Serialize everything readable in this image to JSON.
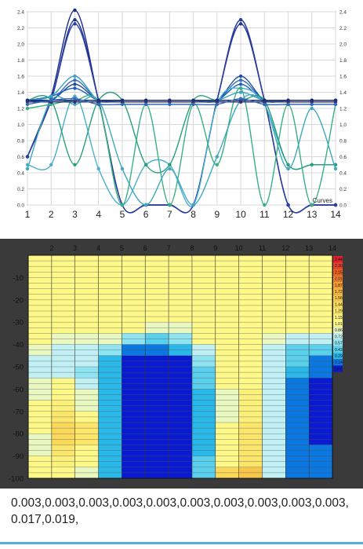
{
  "chart_data": [
    {
      "type": "line",
      "legend_label": "Curves",
      "legend_placement": "bottom-right",
      "grid": true,
      "x": [
        1,
        2,
        3,
        4,
        5,
        6,
        7,
        8,
        9,
        10,
        11,
        12,
        13,
        14
      ],
      "x_ticks": [
        "1",
        "2",
        "3",
        "4",
        "5",
        "6",
        "7",
        "8",
        "9",
        "10",
        "11",
        "12",
        "13",
        "14"
      ],
      "ylim": [
        0,
        2.4
      ],
      "y_ticks": [
        "0.0",
        "0.2",
        "0.4",
        "0.6",
        "0.8",
        "1.0",
        "1.2",
        "1.4",
        "1.6",
        "1.8",
        "2.0",
        "2.2",
        "2.4"
      ],
      "y_ticks_right": [
        "0.0",
        "0.2",
        "0.4",
        "0.6",
        "0.8",
        "1.0",
        "1.2",
        "1.4",
        "1.6",
        "1.8",
        "2.0",
        "2.2",
        "2.4"
      ],
      "series": [
        {
          "color": "#1a2a8a",
          "values": [
            0.6,
            1.35,
            2.42,
            1.3,
            0.0,
            0.0,
            0.0,
            0.0,
            1.3,
            2.3,
            1.3,
            0.0,
            0.0,
            0.0
          ]
        },
        {
          "color": "#22338f",
          "values": [
            0.6,
            1.3,
            2.3,
            1.3,
            0.0,
            0.0,
            0.0,
            0.0,
            1.3,
            2.25,
            1.3,
            0.0,
            0.0,
            0.0
          ]
        },
        {
          "color": "#2a3fa0",
          "values": [
            0.6,
            1.3,
            2.25,
            1.3,
            0.0,
            0.0,
            0.0,
            0.0,
            1.3,
            2.3,
            1.3,
            0.0,
            0.0,
            0.0
          ]
        },
        {
          "color": "#3a6fb0",
          "values": [
            1.3,
            1.3,
            1.55,
            1.3,
            1.3,
            1.3,
            1.3,
            1.3,
            1.3,
            1.55,
            1.3,
            1.3,
            1.3,
            1.3
          ]
        },
        {
          "color": "#1e4fa0",
          "values": [
            1.3,
            1.3,
            1.5,
            1.3,
            1.3,
            1.3,
            1.3,
            1.3,
            1.3,
            1.6,
            1.3,
            1.3,
            1.3,
            1.3
          ]
        },
        {
          "color": "#2060c0",
          "values": [
            1.3,
            1.35,
            1.45,
            1.3,
            1.3,
            1.3,
            1.3,
            1.3,
            1.3,
            1.5,
            1.3,
            1.3,
            1.3,
            1.3
          ]
        },
        {
          "color": "#39a0c8",
          "values": [
            1.3,
            1.35,
            1.6,
            1.3,
            1.3,
            1.3,
            1.3,
            1.3,
            1.3,
            1.4,
            1.3,
            1.3,
            1.3,
            1.3
          ]
        },
        {
          "color": "#4ab0d0",
          "values": [
            0.5,
            0.5,
            1.35,
            0.45,
            0.0,
            0.5,
            0.5,
            0.0,
            1.25,
            1.45,
            1.25,
            0.5,
            0.5,
            0.5
          ]
        },
        {
          "color": "#2aa07a",
          "values": [
            1.3,
            1.3,
            0.5,
            1.3,
            1.3,
            0.5,
            0.5,
            1.3,
            1.3,
            1.3,
            1.3,
            0.5,
            0.5,
            0.5
          ]
        },
        {
          "color": "#38b080",
          "values": [
            1.2,
            1.25,
            1.3,
            1.25,
            0.0,
            1.25,
            0.0,
            1.25,
            0.5,
            1.45,
            0.0,
            1.25,
            0.0,
            1.25
          ]
        },
        {
          "color": "#3fa8c0",
          "values": [
            0.45,
            1.3,
            1.25,
            1.3,
            0.45,
            0.0,
            0.45,
            0.0,
            0.6,
            1.3,
            1.25,
            0.45,
            1.2,
            0.45
          ]
        },
        {
          "color": "#1a2a70",
          "values": [
            1.3,
            1.3,
            1.3,
            1.3,
            1.3,
            1.3,
            1.3,
            1.3,
            1.3,
            1.3,
            1.3,
            1.3,
            1.3,
            1.3
          ]
        },
        {
          "color": "#2f2f6f",
          "values": [
            1.28,
            1.28,
            1.28,
            1.28,
            1.28,
            1.28,
            1.28,
            1.28,
            1.28,
            1.28,
            1.28,
            1.28,
            1.28,
            1.28
          ]
        },
        {
          "color": "#3568b8",
          "values": [
            1.25,
            1.3,
            1.32,
            1.25,
            1.25,
            1.25,
            1.25,
            1.25,
            1.25,
            1.32,
            1.25,
            1.25,
            1.25,
            1.25
          ]
        }
      ]
    },
    {
      "type": "heatmap",
      "x_ticks": [
        "2",
        "3",
        "4",
        "5",
        "6",
        "7",
        "8",
        "9",
        "10",
        "11",
        "12",
        "13",
        "14"
      ],
      "y_ticks": [
        "-10",
        "-20",
        "-30",
        "-40",
        "-50",
        "-60",
        "-70",
        "-80",
        "-90",
        "-100"
      ],
      "xlim": [
        1,
        14
      ],
      "ylim": [
        0,
        -100
      ],
      "scale_labels": [
        "2.44",
        "2.30",
        "2.15",
        "2.01",
        "1.87",
        "1.72",
        "1.58",
        "1.44",
        "1.29",
        "1.15",
        "1.01",
        "0.86",
        "0.72",
        "0.57",
        "0.43",
        "0.29",
        "0.14",
        "0.00"
      ],
      "scale_colors": [
        "#e0202a",
        "#e8402a",
        "#ec6020",
        "#f07e2a",
        "#f39a30",
        "#f5b23a",
        "#f7c64a",
        "#f9d85a",
        "#fae66a",
        "#fbf07a",
        "#fdf888",
        "#e8f8c0",
        "#c0f0f4",
        "#8ee4f0",
        "#5ad0ec",
        "#2ab8e8",
        "#0a78e0",
        "#0a1ad0"
      ],
      "columns_x": [
        1,
        2,
        3,
        4,
        5,
        6,
        7,
        8,
        9,
        10,
        11,
        12,
        13,
        14
      ],
      "rows_depth": [
        0,
        -5,
        -10,
        -15,
        -20,
        -25,
        -30,
        -35,
        -40,
        -45,
        -50,
        -55,
        -60,
        -65,
        -70,
        -75,
        -80,
        -85,
        -90,
        -95,
        -100
      ],
      "values": [
        [
          1.05,
          1.05,
          1.05,
          1.05,
          1.05,
          1.05,
          1.05,
          1.05,
          1.05,
          1.05,
          1.05,
          1.05,
          1.05,
          1.05
        ],
        [
          1.05,
          1.05,
          1.05,
          1.05,
          1.05,
          1.05,
          1.05,
          1.05,
          1.05,
          1.05,
          1.05,
          1.05,
          1.05,
          1.05
        ],
        [
          1.05,
          1.05,
          1.05,
          1.05,
          1.05,
          1.05,
          1.05,
          1.05,
          1.05,
          1.05,
          1.05,
          1.05,
          1.05,
          1.05
        ],
        [
          1.05,
          1.05,
          1.05,
          1.05,
          1.05,
          1.05,
          1.05,
          1.05,
          1.05,
          1.05,
          1.05,
          1.05,
          1.05,
          1.05
        ],
        [
          1.05,
          1.05,
          1.05,
          1.05,
          1.05,
          1.05,
          1.05,
          1.05,
          1.05,
          1.05,
          1.05,
          1.05,
          1.05,
          1.05
        ],
        [
          1.05,
          1.05,
          1.05,
          1.05,
          1.05,
          1.05,
          1.05,
          1.05,
          1.05,
          1.05,
          1.05,
          1.05,
          1.05,
          1.05
        ],
        [
          1.05,
          1.05,
          1.05,
          1.05,
          1.05,
          1.05,
          1.05,
          1.05,
          1.05,
          1.05,
          1.05,
          1.05,
          1.05,
          1.05
        ],
        [
          1.05,
          1.05,
          1.05,
          1.05,
          1.05,
          0.7,
          0.5,
          1.05,
          1.05,
          1.05,
          1.05,
          0.7,
          1.05,
          1.05
        ],
        [
          1.05,
          0.9,
          0.5,
          1.05,
          0.3,
          0.0,
          0.3,
          0.7,
          1.05,
          1.05,
          1.05,
          0.6,
          0.5,
          0.5
        ],
        [
          1.05,
          0.5,
          0.9,
          0.7,
          0.0,
          0.0,
          0.0,
          0.0,
          1.05,
          1.05,
          1.05,
          0.4,
          0.5,
          0.0
        ],
        [
          0.5,
          0.8,
          0.5,
          0.6,
          0.0,
          0.0,
          0.0,
          0.0,
          1.05,
          1.05,
          1.05,
          0.3,
          0.3,
          0.0
        ],
        [
          0.6,
          1.05,
          0.6,
          0.5,
          0.0,
          0.0,
          0.0,
          0.0,
          0.8,
          1.05,
          1.05,
          0.3,
          0.0,
          0.0
        ],
        [
          0.5,
          1.05,
          1.05,
          0.6,
          0.0,
          0.0,
          0.0,
          0.0,
          0.9,
          1.05,
          1.05,
          0.3,
          0.0,
          0.0
        ],
        [
          1.05,
          1.05,
          1.05,
          0.6,
          0.0,
          0.0,
          0.0,
          0.0,
          0.5,
          1.2,
          1.05,
          0.3,
          0.0,
          0.0
        ],
        [
          1.05,
          1.05,
          1.3,
          0.6,
          0.0,
          0.0,
          0.0,
          0.0,
          0.7,
          1.2,
          1.1,
          0.3,
          0.0,
          0.2
        ],
        [
          1.05,
          1.05,
          1.6,
          0.6,
          0.0,
          0.0,
          0.0,
          0.0,
          0.5,
          1.25,
          1.15,
          0.3,
          0.0,
          0.0
        ],
        [
          1.05,
          1.05,
          2.1,
          0.6,
          0.0,
          0.0,
          0.0,
          0.0,
          0.7,
          1.3,
          1.2,
          0.3,
          0.0,
          0.2
        ],
        [
          0.5,
          1.05,
          1.6,
          0.6,
          0.0,
          0.0,
          0.0,
          0.0,
          0.6,
          1.3,
          1.2,
          0.3,
          0.0,
          0.0
        ],
        [
          1.05,
          1.05,
          1.5,
          0.6,
          0.0,
          0.0,
          0.0,
          0.0,
          0.7,
          1.3,
          1.2,
          0.3,
          0.0,
          0.3
        ],
        [
          1.05,
          1.05,
          1.05,
          0.6,
          0.0,
          0.0,
          0.0,
          0.0,
          0.8,
          1.5,
          1.2,
          0.3,
          0.0,
          0.3
        ],
        [
          1.05,
          1.05,
          1.05,
          0.6,
          0.0,
          0.0,
          0.0,
          0.0,
          1.05,
          2.3,
          1.3,
          0.3,
          0.0,
          0.4
        ]
      ]
    }
  ],
  "readout": {
    "text": "0.003,0.003,0.003,0.003,0.003,0.003,0.003,0.003,0.003,0.003,0.017,0.019,"
  },
  "colors": {
    "bottom_bar": "#5aaee0",
    "heatmap_panel": "#3a3a3a"
  }
}
